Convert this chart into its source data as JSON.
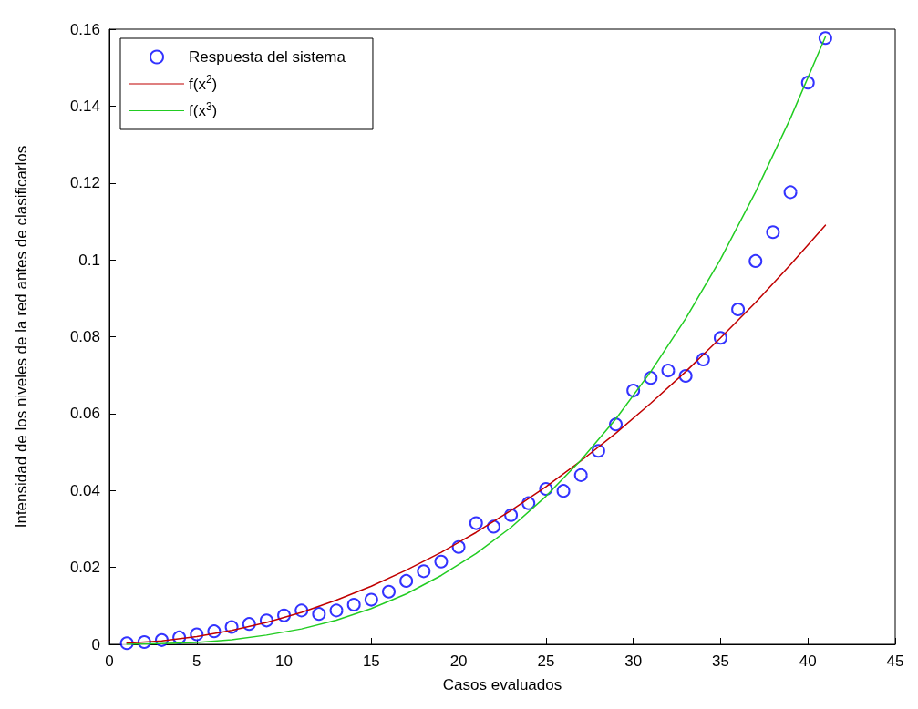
{
  "chart_data": {
    "type": "scatter",
    "xlabel": "Casos evaluados",
    "ylabel": "Intensidad de los niveles de la red antes de clasificarlos",
    "xlim": [
      0,
      45
    ],
    "xticks": [
      0,
      5,
      10,
      15,
      20,
      25,
      30,
      35,
      40,
      45
    ],
    "ylim": [
      0,
      0.16
    ],
    "yticks": [
      0,
      0.02,
      0.04,
      0.06,
      0.08,
      0.1,
      0.12,
      0.14,
      0.16
    ],
    "grid": false,
    "legend": "top left",
    "series": [
      {
        "name": "Respuesta del sistema",
        "marker": "circle",
        "color": "#0000ff",
        "x": [
          1,
          2,
          3,
          4,
          5,
          6,
          7,
          8,
          9,
          10,
          11,
          12,
          13,
          14,
          15,
          16,
          17,
          18,
          19,
          20,
          21,
          22,
          23,
          24,
          25,
          26,
          27,
          28,
          29,
          30,
          31,
          32,
          33,
          34,
          35,
          36,
          37,
          38,
          39,
          40,
          41
        ],
        "values": [
          0.0003,
          0.0006,
          0.0011,
          0.0018,
          0.0026,
          0.0034,
          0.0045,
          0.0053,
          0.0062,
          0.0075,
          0.0088,
          0.0079,
          0.0088,
          0.0103,
          0.0116,
          0.0137,
          0.0165,
          0.019,
          0.0215,
          0.0253,
          0.0315,
          0.0306,
          0.0336,
          0.0367,
          0.0404,
          0.0399,
          0.044,
          0.0503,
          0.0572,
          0.066,
          0.0693,
          0.0712,
          0.0698,
          0.0741,
          0.0797,
          0.0871,
          0.0997,
          0.1072,
          0.1176,
          0.1461,
          0.1577
        ]
      },
      {
        "name": "f(x$^{2}$)",
        "type": "line",
        "marker": "none",
        "line_style": "solid",
        "color": "#c00000",
        "x": [
          1,
          3,
          5,
          7,
          9,
          11,
          13,
          15,
          17,
          19,
          21,
          23,
          25,
          27,
          29,
          31,
          33,
          35,
          37,
          39,
          41
        ],
        "values": [
          0.0003,
          0.0009,
          0.002,
          0.0036,
          0.0057,
          0.0083,
          0.0115,
          0.0151,
          0.0193,
          0.0239,
          0.0291,
          0.0348,
          0.041,
          0.0477,
          0.0549,
          0.0627,
          0.0709,
          0.0797,
          0.0889,
          0.0987,
          0.109
        ]
      },
      {
        "name": "f(x$^{3}$)",
        "type": "line",
        "marker": "none",
        "line_style": "solid",
        "color": "#22cc22",
        "x": [
          1,
          3,
          5,
          7,
          9,
          11,
          13,
          15,
          17,
          19,
          21,
          23,
          25,
          27,
          29,
          31,
          33,
          35,
          37,
          39,
          41
        ],
        "values": [
          0,
          0.0002,
          0.0005,
          0.0012,
          0.0024,
          0.004,
          0.0063,
          0.0093,
          0.0131,
          0.0179,
          0.0236,
          0.0304,
          0.0385,
          0.0479,
          0.0586,
          0.0709,
          0.0847,
          0.1002,
          0.1176,
          0.1368,
          0.158
        ]
      }
    ]
  }
}
